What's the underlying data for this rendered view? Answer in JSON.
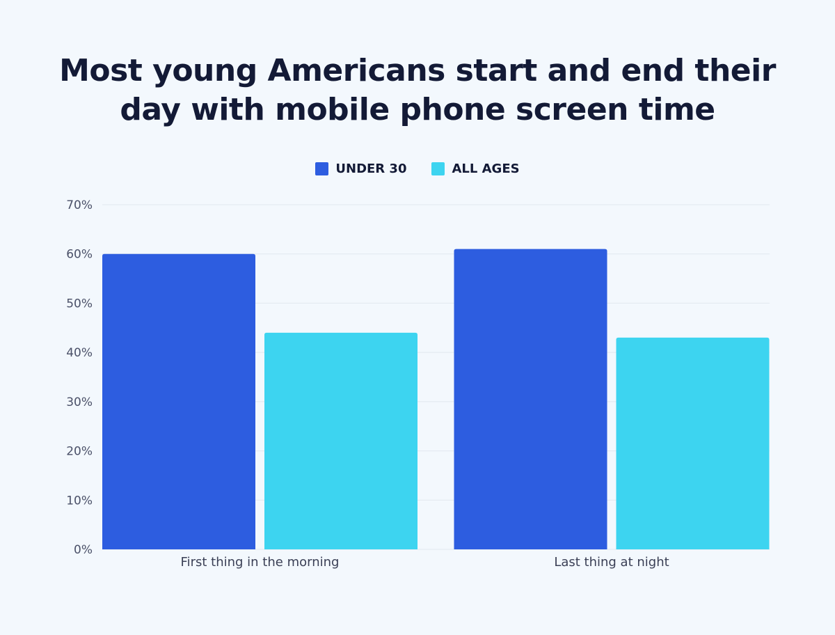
{
  "chart_data": {
    "type": "bar",
    "title": "Most young Americans start and end their day with mobile phone screen time",
    "title_lines": [
      "Most young Americans start and end their",
      "day with mobile phone screen time"
    ],
    "categories": [
      "First thing in the morning",
      "Last thing at night"
    ],
    "series": [
      {
        "name": "UNDER 30",
        "values": [
          60,
          61
        ],
        "color": "#2d5de0"
      },
      {
        "name": "ALL AGES",
        "values": [
          44,
          43
        ],
        "color": "#3dd4f0"
      }
    ],
    "ylim": [
      0,
      70
    ],
    "yticks": [
      0,
      10,
      20,
      30,
      40,
      50,
      60,
      70
    ],
    "ytick_format": "%",
    "grid": true,
    "legend_position": "top-center",
    "xlabel": "",
    "ylabel": ""
  }
}
